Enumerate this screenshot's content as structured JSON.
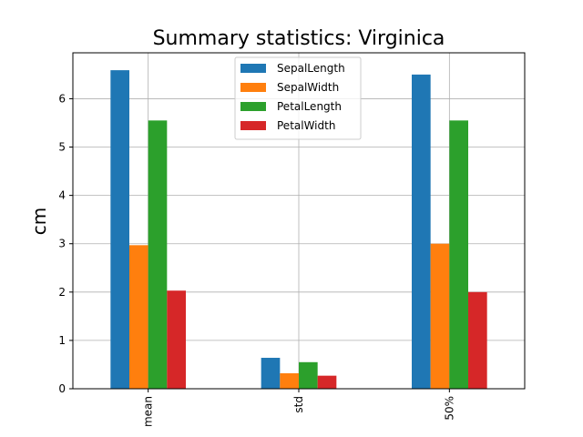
{
  "chart_data": {
    "type": "bar",
    "title": "Summary statistics: Virginica",
    "xlabel": "",
    "ylabel": "cm",
    "categories": [
      "mean",
      "std",
      "50%"
    ],
    "series": [
      {
        "name": "SepalLength",
        "color": "#1f77b4",
        "values": [
          6.59,
          0.64,
          6.5
        ]
      },
      {
        "name": "SepalWidth",
        "color": "#ff7f0e",
        "values": [
          2.97,
          0.32,
          3.0
        ]
      },
      {
        "name": "PetalLength",
        "color": "#2ca02c",
        "values": [
          5.55,
          0.55,
          5.55
        ]
      },
      {
        "name": "PetalWidth",
        "color": "#d62728",
        "values": [
          2.03,
          0.27,
          2.0
        ]
      }
    ],
    "ylim": [
      0,
      6.95
    ],
    "yticks": [
      0,
      1,
      2,
      3,
      4,
      5,
      6
    ],
    "grid": true,
    "legend_position": "upper center"
  }
}
